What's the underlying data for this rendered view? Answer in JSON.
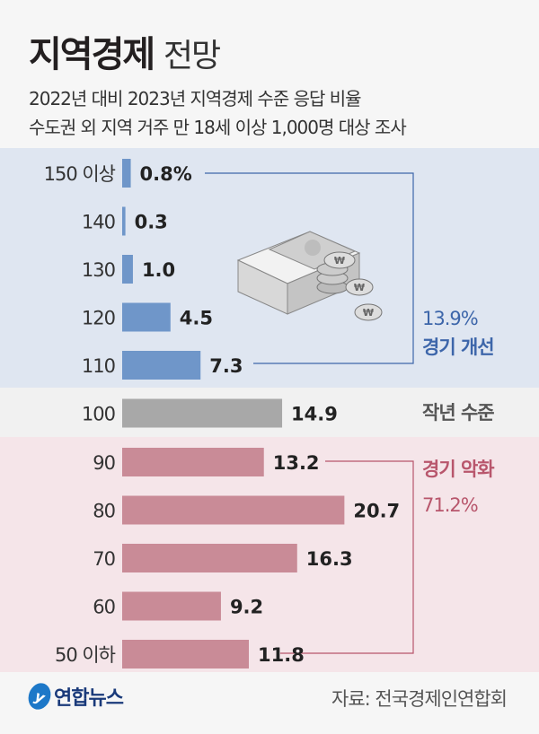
{
  "header": {
    "title_bold": "지역경제",
    "title_light": "전망",
    "subtitle_1": "2022년 대비 2023년 지역경제 수준 응답 비율",
    "subtitle_2": "수도권 외 지역 거주 만 18세 이상 1,000명 대상 조사"
  },
  "chart_data": {
    "type": "bar",
    "orientation": "horizontal",
    "title": "지역경제 전망",
    "categories": [
      "150 이상",
      "140",
      "130",
      "120",
      "110",
      "100",
      "90",
      "80",
      "70",
      "60",
      "50 이하"
    ],
    "values": [
      0.8,
      0.3,
      1.0,
      4.5,
      7.3,
      14.9,
      13.2,
      20.7,
      16.3,
      9.2,
      11.8
    ],
    "value_labels": [
      "0.8%",
      "0.3",
      "1.0",
      "4.5",
      "7.3",
      "14.9",
      "13.2",
      "20.7",
      "16.3",
      "9.2",
      "11.8"
    ],
    "groups": [
      {
        "name": "경기 개선",
        "total": "13.9%",
        "categories": [
          "150 이상",
          "140",
          "130",
          "120",
          "110"
        ],
        "color": "#6f96c9"
      },
      {
        "name": "작년 수준",
        "categories": [
          "100"
        ],
        "color": "#a8a8a8"
      },
      {
        "name": "경기 악화",
        "total": "71.2%",
        "categories": [
          "90",
          "80",
          "70",
          "60",
          "50 이하"
        ],
        "color": "#c98b97"
      }
    ],
    "unit": "%"
  },
  "colors": {
    "improve": "#3d66aa",
    "same": "#555555",
    "worse": "#b8566c"
  },
  "footer": {
    "logo": "연합뉴스",
    "source": "자료: 전국경제인연합회"
  }
}
